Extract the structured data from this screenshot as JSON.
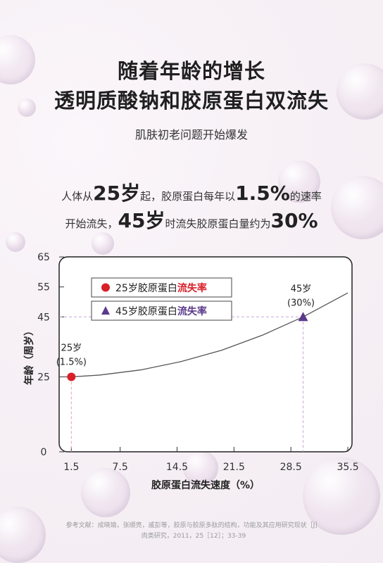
{
  "header": {
    "title_line1": "随着年龄的增长",
    "title_line2": "透明质酸钠和胶原蛋白双流失",
    "subtitle": "肌肤初老问题开始爆发"
  },
  "description": {
    "line1_a": "人体从",
    "line1_b": "25岁",
    "line1_c": "起，胶原蛋白每年以",
    "line1_d": "1.5%",
    "line1_e": "的速率",
    "line2_a": "开始流失，",
    "line2_b": "45岁",
    "line2_c": "时流失胶原蛋白量约为",
    "line2_d": "30%"
  },
  "colors": {
    "red": "#d9202a",
    "purple": "#5b3a8c",
    "curve": "#555555",
    "dashed_red": "#f0a0a8",
    "dashed_purple": "#c8a8d8"
  },
  "chart_data": {
    "type": "line",
    "xlabel": "胶原蛋白流失速度（%）",
    "ylabel": "年龄（周岁）",
    "x_ticks": [
      "1.5",
      "7.5",
      "14.5",
      "21.5",
      "28.5",
      "35.5"
    ],
    "y_ticks": [
      "0",
      "25",
      "45",
      "55",
      "65"
    ],
    "xlim": [
      0,
      35.5
    ],
    "ylim": [
      0,
      65
    ],
    "grid": false,
    "legend_position": "top-left",
    "legend": [
      {
        "marker": "circle",
        "prefix": "25岁胶原蛋白",
        "highlight": "流失率"
      },
      {
        "marker": "triangle",
        "prefix": "45岁胶原蛋白",
        "highlight": "流失率"
      }
    ],
    "points": [
      {
        "x": 1.5,
        "y": 25,
        "label1": "25岁",
        "label2": "(1.5%)",
        "marker": "circle"
      },
      {
        "x": 30,
        "y": 45,
        "label1": "45岁",
        "label2": "(30%)",
        "marker": "triangle"
      }
    ],
    "curve": {
      "x": [
        0,
        1.5,
        5,
        10,
        15,
        20,
        25,
        30,
        35.5
      ],
      "y": [
        25,
        25,
        25.6,
        27.3,
        30.1,
        33.9,
        38.9,
        45,
        53
      ]
    }
  },
  "reference": {
    "line1": "参考文献：成晓瑜，张顺亮，戚彭等，胶原与胶原多肽的结构，功能及其应用研究现状［J］",
    "line2": "肉类研究，2011，25［12］；33-39"
  }
}
